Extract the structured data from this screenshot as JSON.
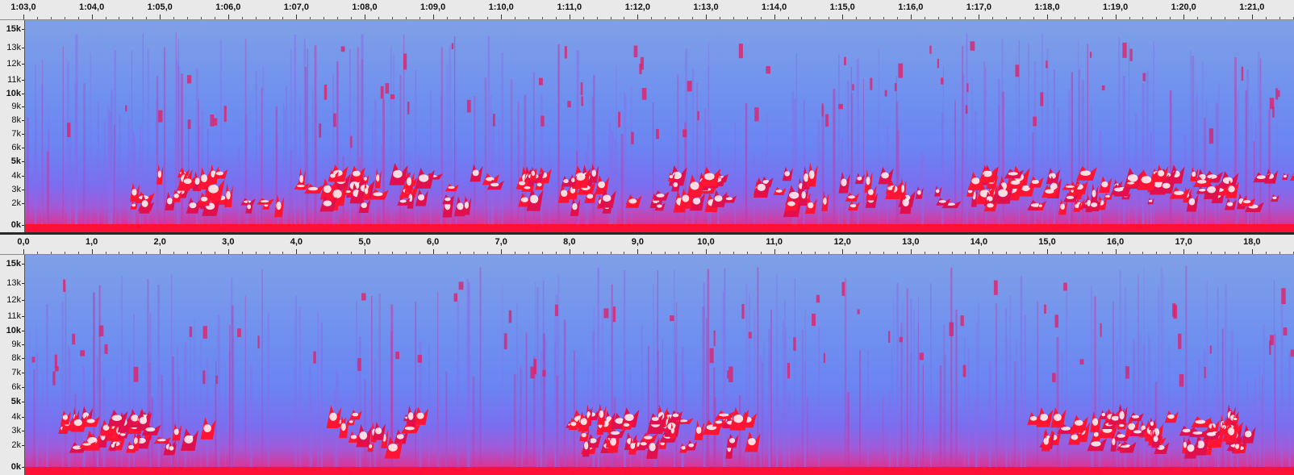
{
  "top_track": {
    "ruler_labels": [
      "1:03,0",
      "1:04,0",
      "1:05,0",
      "1:06,0",
      "1:07,0",
      "1:08,0",
      "1:09,0",
      "1:10,0",
      "1:11,0",
      "1:12,0",
      "1:13,0",
      "1:14,0",
      "1:15,0",
      "1:16,0",
      "1:17,0",
      "1:18,0",
      "1:19,0",
      "1:20,0",
      "1:21,0"
    ],
    "freq_labels": [
      "15k",
      "13k",
      "12k",
      "11k",
      "10k",
      "9k",
      "8k",
      "7k",
      "6k",
      "5k",
      "4k",
      "3k",
      "2k",
      "0k"
    ]
  },
  "bottom_track": {
    "ruler_labels": [
      "0,0",
      "1,0",
      "2,0",
      "3,0",
      "4,0",
      "5,0",
      "6,0",
      "7,0",
      "8,0",
      "9,0",
      "10,0",
      "11,0",
      "12,0",
      "13,0",
      "14,0",
      "15,0",
      "16,0",
      "17,0",
      "18,0"
    ],
    "freq_labels": [
      "15k",
      "13k",
      "12k",
      "11k",
      "10k",
      "9k",
      "8k",
      "7k",
      "6k",
      "5k",
      "4k",
      "3k",
      "2k",
      "0k"
    ]
  },
  "colors": {
    "background_noise": "#6f8ff0",
    "low_energy": "#ff1a4a",
    "mid_energy": "#d81f6a",
    "high_energy": "#ffffff"
  }
}
